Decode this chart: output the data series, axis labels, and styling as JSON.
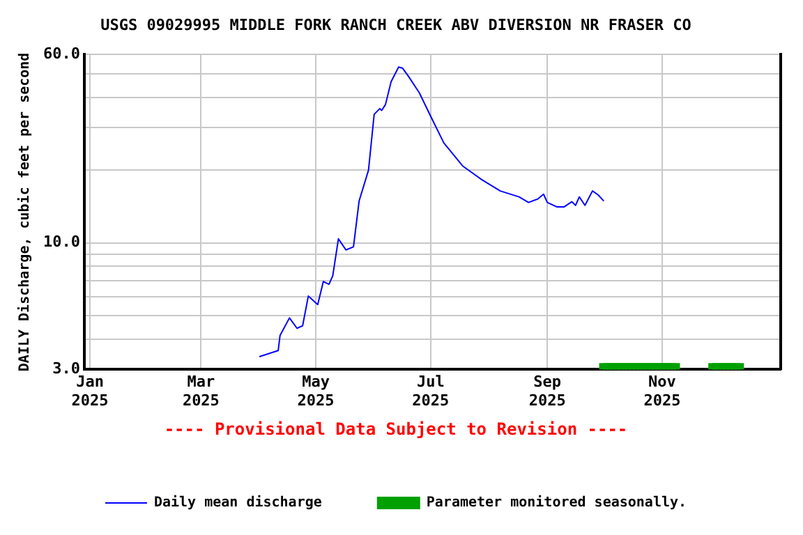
{
  "chart_data": {
    "type": "line",
    "title": "USGS 09029995 MIDDLE FORK RANCH CREEK ABV DIVERSION NR FRASER CO",
    "ylabel": "DAILY Discharge, cubic feet per second",
    "annotations": [
      "---- Provisional Data Subject to Revision ----"
    ],
    "log": "y",
    "grid": true,
    "legend": "bottom",
    "xlim": [
      "2024-12-29",
      "2026-01-03"
    ],
    "xticks": [
      {
        "value": "2025-01-01",
        "label": "Jan 2025"
      },
      {
        "value": "2025-03-01",
        "label": "Mar 2025"
      },
      {
        "value": "2025-05-01",
        "label": "May 2025"
      },
      {
        "value": "2025-07-01",
        "label": "Jul 2025"
      },
      {
        "value": "2025-09-01",
        "label": "Sep 2025"
      },
      {
        "value": "2025-11-01",
        "label": "Nov 2025"
      }
    ],
    "ylim": [
      3,
      60
    ],
    "yticks": [
      {
        "value": 3,
        "label": "3.0"
      },
      {
        "value": 4,
        "label": null
      },
      {
        "value": 5,
        "label": null
      },
      {
        "value": 6,
        "label": null
      },
      {
        "value": 7,
        "label": null
      },
      {
        "value": 8,
        "label": null
      },
      {
        "value": 9,
        "label": null
      },
      {
        "value": 10,
        "label": "10.0"
      },
      {
        "value": 20,
        "label": null
      },
      {
        "value": 30,
        "label": null
      },
      {
        "value": 40,
        "label": null
      },
      {
        "value": 50,
        "label": null
      },
      {
        "value": 60,
        "label": "60.0"
      }
    ],
    "series": [
      {
        "name": "Daily mean discharge",
        "color": "#0000ff",
        "marker": "none",
        "x": [
          "2025-04-01",
          "2025-04-11",
          "2025-04-12",
          "2025-04-17",
          "2025-04-21",
          "2025-04-24",
          "2025-04-27",
          "2025-05-02",
          "2025-05-05",
          "2025-05-08",
          "2025-05-10",
          "2025-05-13",
          "2025-05-17",
          "2025-05-21",
          "2025-05-24",
          "2025-05-29",
          "2025-06-01",
          "2025-06-04",
          "2025-06-05",
          "2025-06-07",
          "2025-06-10",
          "2025-06-14",
          "2025-06-16",
          "2025-06-19",
          "2025-06-25",
          "2025-07-01",
          "2025-07-08",
          "2025-07-18",
          "2025-07-28",
          "2025-08-07",
          "2025-08-17",
          "2025-08-22",
          "2025-08-27",
          "2025-08-30",
          "2025-09-01",
          "2025-09-06",
          "2025-09-10",
          "2025-09-14",
          "2025-09-16",
          "2025-09-18",
          "2025-09-21",
          "2025-09-25",
          "2025-09-28",
          "2025-10-01"
        ],
        "values": [
          3.39,
          3.59,
          4.15,
          4.9,
          4.44,
          4.55,
          6.03,
          5.56,
          6.93,
          6.75,
          7.32,
          10.4,
          9.36,
          9.63,
          14.9,
          20,
          34,
          35.9,
          35.3,
          37.3,
          46.4,
          53.3,
          52.8,
          49.1,
          41.7,
          33.4,
          25.9,
          20.8,
          18.3,
          16.4,
          15.5,
          14.7,
          15.2,
          15.9,
          14.7,
          14.1,
          14.1,
          14.8,
          14.3,
          15.5,
          14.3,
          16.4,
          15.8,
          14.9
        ]
      },
      {
        "name": "Parameter monitored seasonally.",
        "type": "scatter",
        "color": "#00a000",
        "marker": "square",
        "x": [
          "2025-10-01",
          "2025-10-03",
          "2025-10-05",
          "2025-10-07",
          "2025-10-09",
          "2025-10-11",
          "2025-10-13",
          "2025-10-15",
          "2025-10-17",
          "2025-10-19",
          "2025-10-21",
          "2025-10-23",
          "2025-10-25",
          "2025-10-27",
          "2025-10-29",
          "2025-10-31",
          "2025-11-02",
          "2025-11-04",
          "2025-11-06",
          "2025-11-08",
          "2025-11-28",
          "2025-11-30",
          "2025-12-02",
          "2025-12-04",
          "2025-12-06",
          "2025-12-08",
          "2025-12-10",
          "2025-12-12"
        ],
        "values": [
          3.05,
          3.05,
          3.05,
          3.05,
          3.05,
          3.05,
          3.05,
          3.05,
          3.05,
          3.05,
          3.05,
          3.05,
          3.05,
          3.05,
          3.05,
          3.05,
          3.05,
          3.05,
          3.05,
          3.05,
          3.05,
          3.05,
          3.05,
          3.05,
          3.05,
          3.05,
          3.05,
          3.05
        ]
      }
    ]
  }
}
